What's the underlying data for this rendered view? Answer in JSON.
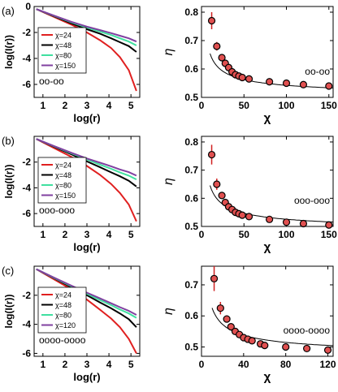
{
  "chart_data": [
    {
      "type": "line",
      "panel": "left",
      "row_label": "(a)",
      "xlabel": "log(r)",
      "ylabel": "log(I(r))",
      "xlim": [
        0.6,
        5.4
      ],
      "ylim": [
        -7,
        0
      ],
      "xticks": [
        1,
        2,
        3,
        4,
        5
      ],
      "yticks": [
        0,
        -2,
        -4,
        -6
      ],
      "annotation": "oo-oo",
      "legend_position": "upper-left",
      "series": [
        {
          "name": "χ=24",
          "color": "#e02020",
          "x": [
            0.7,
            1.5,
            2.3,
            3.0,
            3.6,
            4.1,
            4.5,
            4.9,
            5.25
          ],
          "y": [
            -0.2,
            -0.8,
            -1.4,
            -2.0,
            -2.6,
            -3.2,
            -3.9,
            -4.9,
            -6.5
          ]
        },
        {
          "name": "χ=48",
          "color": "#000000",
          "x": [
            0.7,
            1.5,
            2.3,
            3.0,
            3.6,
            4.1,
            4.5,
            4.9,
            5.25
          ],
          "y": [
            -0.2,
            -0.75,
            -1.3,
            -1.75,
            -2.1,
            -2.45,
            -2.75,
            -3.05,
            -3.5
          ]
        },
        {
          "name": "χ=80",
          "color": "#40e0a0",
          "x": [
            0.7,
            1.5,
            2.3,
            3.0,
            3.6,
            4.1,
            4.5,
            4.9,
            5.25
          ],
          "y": [
            -0.2,
            -0.72,
            -1.22,
            -1.62,
            -1.93,
            -2.2,
            -2.45,
            -2.7,
            -3.0
          ]
        },
        {
          "name": "χ=150",
          "color": "#8040a0",
          "x": [
            0.7,
            1.5,
            2.3,
            3.0,
            3.6,
            4.1,
            4.5,
            4.9,
            5.25
          ],
          "y": [
            -0.2,
            -0.7,
            -1.18,
            -1.55,
            -1.82,
            -2.05,
            -2.25,
            -2.45,
            -2.7
          ]
        }
      ]
    },
    {
      "type": "scatter",
      "panel": "right",
      "xlabel": "χ",
      "ylabel": "η",
      "xlim": [
        0,
        155
      ],
      "ylim": [
        0.5,
        0.82
      ],
      "xticks": [
        0,
        50,
        100,
        150
      ],
      "yticks": [
        0.5,
        0.6,
        0.7,
        0.8
      ],
      "annotation": "oo-oo",
      "x": [
        12,
        18,
        24,
        28,
        32,
        36,
        40,
        44,
        48,
        56,
        80,
        100,
        120,
        150
      ],
      "y": [
        0.77,
        0.68,
        0.64,
        0.62,
        0.605,
        0.59,
        0.58,
        0.575,
        0.57,
        0.565,
        0.555,
        0.55,
        0.545,
        0.54
      ],
      "err": [
        0.03,
        0.015,
        0.01,
        0.008,
        0.006,
        0.005,
        0.004,
        0.004,
        0.003,
        0.003,
        0.003,
        0.003,
        0.003,
        0.003
      ],
      "fit": {
        "a": 0.5,
        "b": 0.56,
        "p": 0.56
      }
    },
    {
      "type": "line",
      "panel": "left",
      "row_label": "(b)",
      "xlabel": "log(r)",
      "ylabel": "log(I(r))",
      "xlim": [
        0.6,
        5.4
      ],
      "ylim": [
        -7,
        0
      ],
      "xticks": [
        1,
        2,
        3,
        4,
        5
      ],
      "yticks": [
        -2,
        -4,
        -6
      ],
      "annotation": "ooo-ooo",
      "legend_position": "upper-left",
      "series": [
        {
          "name": "χ=24",
          "color": "#e02020",
          "x": [
            0.7,
            1.5,
            2.3,
            3.0,
            3.6,
            4.1,
            4.5,
            4.9,
            5.25
          ],
          "y": [
            -0.2,
            -0.9,
            -1.6,
            -2.3,
            -3.0,
            -3.7,
            -4.4,
            -5.3,
            -6.6
          ]
        },
        {
          "name": "χ=48",
          "color": "#000000",
          "x": [
            0.7,
            1.5,
            2.3,
            3.0,
            3.6,
            4.1,
            4.5,
            4.9,
            5.25
          ],
          "y": [
            -0.2,
            -0.8,
            -1.4,
            -1.95,
            -2.4,
            -2.8,
            -3.1,
            -3.45,
            -3.9
          ]
        },
        {
          "name": "χ=80",
          "color": "#40e0a0",
          "x": [
            0.7,
            1.5,
            2.3,
            3.0,
            3.6,
            4.1,
            4.5,
            4.9,
            5.25
          ],
          "y": [
            -0.2,
            -0.77,
            -1.32,
            -1.8,
            -2.2,
            -2.52,
            -2.8,
            -3.05,
            -3.35
          ]
        },
        {
          "name": "χ=150",
          "color": "#8040a0",
          "x": [
            0.7,
            1.5,
            2.3,
            3.0,
            3.6,
            4.1,
            4.5,
            4.9,
            5.25
          ],
          "y": [
            -0.2,
            -0.75,
            -1.28,
            -1.72,
            -2.05,
            -2.33,
            -2.57,
            -2.78,
            -3.05
          ]
        }
      ]
    },
    {
      "type": "scatter",
      "panel": "right",
      "xlabel": "χ",
      "ylabel": "η",
      "xlim": [
        0,
        155
      ],
      "ylim": [
        0.5,
        0.82
      ],
      "xticks": [
        0,
        50,
        100,
        150
      ],
      "yticks": [
        0.5,
        0.6,
        0.7,
        0.8
      ],
      "annotation": "ooo-ooo",
      "x": [
        12,
        18,
        24,
        28,
        32,
        36,
        40,
        44,
        48,
        56,
        80,
        100,
        120,
        150
      ],
      "y": [
        0.755,
        0.65,
        0.61,
        0.585,
        0.57,
        0.56,
        0.55,
        0.545,
        0.54,
        0.535,
        0.525,
        0.515,
        0.51,
        0.505
      ],
      "err": [
        0.035,
        0.02,
        0.01,
        0.008,
        0.006,
        0.005,
        0.004,
        0.004,
        0.003,
        0.003,
        0.003,
        0.003,
        0.003,
        0.003
      ],
      "fit": {
        "a": 0.48,
        "b": 0.6,
        "p": 0.56
      }
    },
    {
      "type": "line",
      "panel": "left",
      "row_label": "(c)",
      "xlabel": "log(r)",
      "ylabel": "log(I(r))",
      "xlim": [
        0.6,
        5.4
      ],
      "ylim": [
        -6.2,
        0
      ],
      "xticks": [
        1,
        2,
        3,
        4,
        5
      ],
      "yticks": [
        -2,
        -4,
        -6
      ],
      "annotation": "oooo-oooo",
      "legend_position": "upper-left",
      "series": [
        {
          "name": "χ=24",
          "color": "#e02020",
          "x": [
            0.7,
            1.5,
            2.3,
            3.0,
            3.6,
            4.1,
            4.5,
            4.9,
            5.25
          ],
          "y": [
            -0.2,
            -0.9,
            -1.6,
            -2.3,
            -3.0,
            -3.6,
            -4.2,
            -5.0,
            -6.0
          ]
        },
        {
          "name": "χ=48",
          "color": "#000000",
          "x": [
            0.7,
            1.5,
            2.3,
            3.0,
            3.6,
            4.1,
            4.5,
            4.9,
            5.25
          ],
          "y": [
            -0.2,
            -0.82,
            -1.45,
            -2.0,
            -2.5,
            -2.9,
            -3.25,
            -3.65,
            -4.2
          ]
        },
        {
          "name": "χ=80",
          "color": "#40e0a0",
          "x": [
            0.7,
            1.5,
            2.3,
            3.0,
            3.6,
            4.1,
            4.5,
            4.9,
            5.25
          ],
          "y": [
            -0.2,
            -0.8,
            -1.38,
            -1.9,
            -2.33,
            -2.68,
            -2.98,
            -3.25,
            -3.55
          ]
        },
        {
          "name": "χ=120",
          "color": "#8040a0",
          "x": [
            0.7,
            1.5,
            2.3,
            3.0,
            3.6,
            4.1,
            4.5,
            4.9,
            5.25
          ],
          "y": [
            -0.2,
            -0.78,
            -1.34,
            -1.82,
            -2.22,
            -2.55,
            -2.82,
            -3.07,
            -3.35
          ]
        }
      ]
    },
    {
      "type": "scatter",
      "panel": "right",
      "xlabel": "χ",
      "ylabel": "η",
      "xlim": [
        0,
        125
      ],
      "ylim": [
        0.47,
        0.76
      ],
      "xticks": [
        0,
        40,
        80,
        120
      ],
      "yticks": [
        0.5,
        0.6,
        0.7
      ],
      "annotation": "oooo-oooo",
      "x": [
        12,
        18,
        24,
        28,
        32,
        36,
        40,
        44,
        48,
        56,
        60,
        80,
        100,
        120
      ],
      "y": [
        0.72,
        0.625,
        0.59,
        0.565,
        0.55,
        0.54,
        0.53,
        0.525,
        0.52,
        0.51,
        0.505,
        0.5,
        0.495,
        0.49
      ],
      "err": [
        0.04,
        0.02,
        0.012,
        0.008,
        0.006,
        0.005,
        0.004,
        0.004,
        0.003,
        0.003,
        0.003,
        0.003,
        0.003,
        0.003
      ],
      "fit": {
        "a": 0.47,
        "b": 0.62,
        "p": 0.6
      }
    }
  ]
}
